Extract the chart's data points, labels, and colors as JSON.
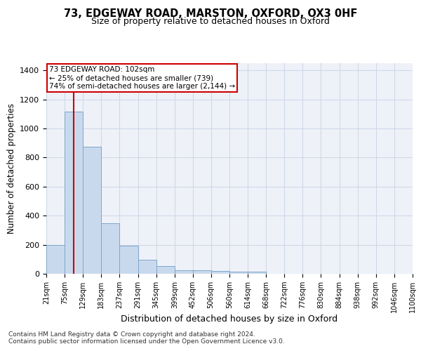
{
  "title": "73, EDGEWAY ROAD, MARSTON, OXFORD, OX3 0HF",
  "subtitle": "Size of property relative to detached houses in Oxford",
  "xlabel": "Distribution of detached houses by size in Oxford",
  "ylabel": "Number of detached properties",
  "footnote1": "Contains HM Land Registry data © Crown copyright and database right 2024.",
  "footnote2": "Contains public sector information licensed under the Open Government Licence v3.0.",
  "bin_edges": [
    21,
    75,
    129,
    183,
    237,
    291,
    345,
    399,
    452,
    506,
    560,
    614,
    668,
    722,
    776,
    830,
    884,
    938,
    992,
    1046,
    1100
  ],
  "bar_heights": [
    196,
    1115,
    873,
    348,
    193,
    98,
    52,
    25,
    25,
    18,
    15,
    15,
    0,
    0,
    0,
    0,
    0,
    0,
    0,
    0
  ],
  "bar_color": "#c9d9ed",
  "bar_edge_color": "#7da6cc",
  "grid_color": "#d0d8e8",
  "background_color": "#eef2f8",
  "property_size": 102,
  "annotation_line1": "73 EDGEWAY ROAD: 102sqm",
  "annotation_line2": "← 25% of detached houses are smaller (739)",
  "annotation_line3": "74% of semi-detached houses are larger (2,144) →",
  "vline_color": "#cc0000",
  "annotation_box_color": "#cc0000",
  "ylim": [
    0,
    1450
  ],
  "title_fontsize": 10.5,
  "subtitle_fontsize": 9,
  "tick_label_fontsize": 7,
  "ylabel_fontsize": 8.5,
  "xlabel_fontsize": 9,
  "yticks": [
    0,
    200,
    400,
    600,
    800,
    1000,
    1200,
    1400
  ]
}
